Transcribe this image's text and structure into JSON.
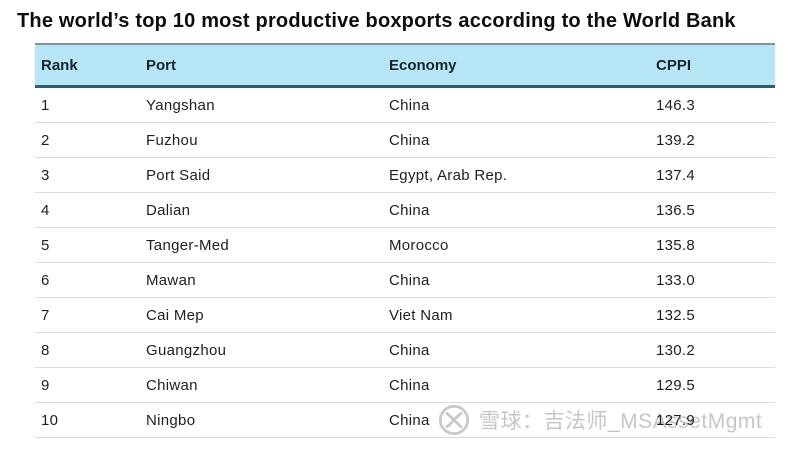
{
  "page": {
    "title": "The world’s top 10 most productive boxports according to the World Bank"
  },
  "table": {
    "columns": [
      {
        "key": "rank",
        "label": "Rank"
      },
      {
        "key": "port",
        "label": "Port"
      },
      {
        "key": "economy",
        "label": "Economy"
      },
      {
        "key": "cppi",
        "label": "CPPI"
      }
    ],
    "rows": [
      {
        "rank": "1",
        "port": "Yangshan",
        "economy": "China",
        "cppi": "146.3"
      },
      {
        "rank": "2",
        "port": "Fuzhou",
        "economy": "China",
        "cppi": "139.2"
      },
      {
        "rank": "3",
        "port": "Port Said",
        "economy": "Egypt, Arab Rep.",
        "cppi": "137.4"
      },
      {
        "rank": "4",
        "port": "Dalian",
        "economy": "China",
        "cppi": "136.5"
      },
      {
        "rank": "5",
        "port": "Tanger-Med",
        "economy": "Morocco",
        "cppi": "135.8"
      },
      {
        "rank": "6",
        "port": "Mawan",
        "economy": "China",
        "cppi": "133.0"
      },
      {
        "rank": "7",
        "port": "Cai Mep",
        "economy": "Viet Nam",
        "cppi": "132.5"
      },
      {
        "rank": "8",
        "port": "Guangzhou",
        "economy": "China",
        "cppi": "130.2"
      },
      {
        "rank": "9",
        "port": "Chiwan",
        "economy": "China",
        "cppi": "129.5"
      },
      {
        "rank": "10",
        "port": "Ningbo",
        "economy": "China",
        "cppi": "127.9"
      }
    ]
  },
  "watermark": {
    "text": "雪球：吉法师_MSAssetMgmt",
    "logo": "xueqiu-snowball-logo"
  },
  "colors": {
    "header_bg": "#b6e6f6",
    "header_top_border": "#8b9094",
    "header_bottom_border": "#2f5f6e",
    "row_divider": "#dcdcdc",
    "body_text": "#1f1f1f",
    "title_text": "#0d0d0d",
    "watermark": "#c6c6c6"
  }
}
